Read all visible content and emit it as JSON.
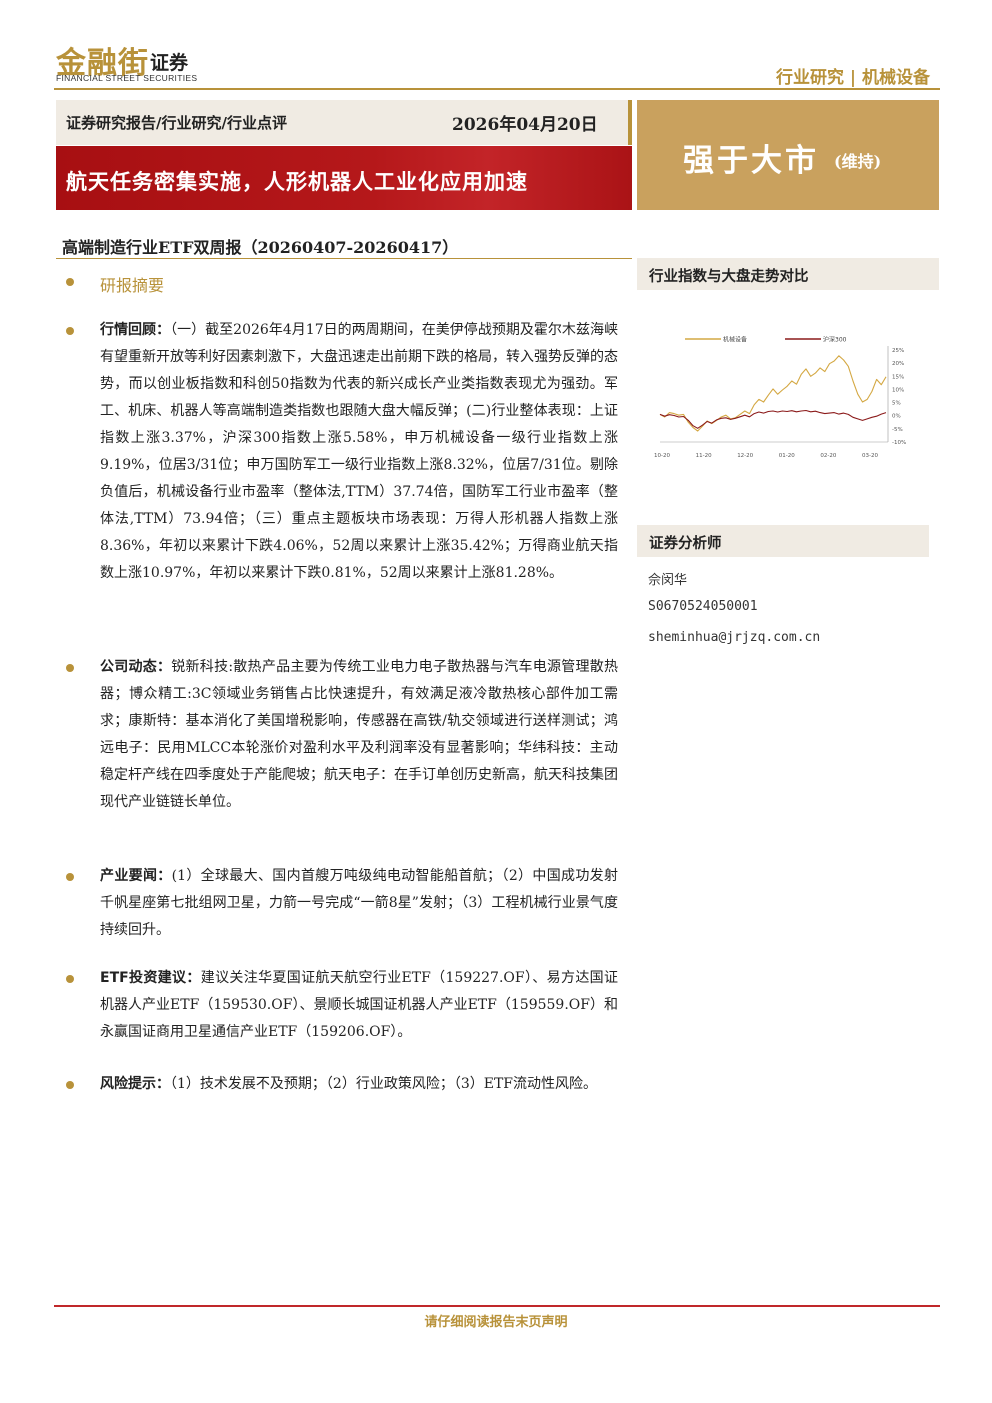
{
  "brand": {
    "name_cn": "金融街",
    "name_suffix": "证券",
    "name_en": "FINANCIAL STREET SECURITIES"
  },
  "top_category": "行业研究 | 机械设备",
  "header": {
    "report_type": "证券研究报告/行业研究/行业点评",
    "date": "2026年04月20日"
  },
  "title": "航天任务密集实施，人形机器人工业化应用加速",
  "rating": {
    "main": "强于大市",
    "sub": "(维持)"
  },
  "subheading": "高端制造行业ETF双周报（20260407-20260417）",
  "abstract_title": "研报摘要",
  "sections": [
    {
      "label": "行情回顾：",
      "text": "（一）截至2026年4月17日的两周期间，在美伊停战预期及霍尔木兹海峡有望重新开放等利好因素刺激下，大盘迅速走出前期下跌的格局，转入强势反弹的态势，而以创业板指数和科创50指数为代表的新兴成长产业类指数表现尤为强劲。军工、机床、机器人等高端制造类指数也跟随大盘大幅反弹；(二)行业整体表现：上证指数上涨3.37%，沪深300指数上涨5.58%，申万机械设备一级行业指数上涨9.19%，位居3/31位；申万国防军工一级行业指数上涨8.32%，位居7/31位。剔除负值后，机械设备行业市盈率（整体法,TTM）37.74倍，国防军工行业市盈率（整体法,TTM）73.94倍；（三）重点主题板块市场表现：万得人形机器人指数上涨8.36%，年初以来累计下跌4.06%，52周以来累计上涨35.42%；万得商业航天指数上涨10.97%，年初以来累计下跌0.81%，52周以来累计上涨81.28%。"
    },
    {
      "label": "公司动态：",
      "text": "锐新科技:散热产品主要为传统工业电力电子散热器与汽车电源管理散热器；博众精工:3C领域业务销售占比快速提升，有效满足液冷散热核心部件加工需求；康斯特：基本消化了美国增税影响，传感器在高铁/轨交领域进行送样测试；鸿远电子：民用MLCC本轮涨价对盈利水平及利润率没有显著影响；华纬科技：主动稳定杆产线在四季度处于产能爬坡；航天电子：在手订单创历史新高，航天科技集团现代产业链链长单位。"
    },
    {
      "label": "产业要闻：",
      "text": "(1）全球最大、国内首艘万吨级纯电动智能船首航；（2）中国成功发射千帆星座第七批组网卫星，力箭一号完成“一箭8星”发射；（3）工程机械行业景气度持续回升。"
    },
    {
      "label": "ETF投资建议：",
      "text": "建议关注华夏国证航天航空行业ETF（159227.OF）、易方达国证机器人产业ETF（159530.OF）、景顺长城国证机器人产业ETF（159559.OF）和永赢国证商用卫星通信产业ETF（159206.OF）。"
    },
    {
      "label": "风险提示：",
      "text": "（1）技术发展不及预期；（2）行业政策风险；（3）ETF流动性风险。"
    }
  ],
  "sidebar": {
    "chart_title": "行业指数与大盘走势对比",
    "analyst_title": "证券分析师",
    "analyst_name": "佘闵华",
    "analyst_id": "S0670524050001",
    "analyst_email": "sheminhua@jrjzq.com.cn"
  },
  "colors": {
    "gold": "#b8923a",
    "red": "#b5181a",
    "series1": "#d4a843",
    "series2": "#8b1a1a"
  },
  "chart_data": {
    "type": "line",
    "x_tick_labels": [
      "10-20",
      "11-20",
      "12-20",
      "01-20",
      "02-20",
      "03-20"
    ],
    "y_tick_labels": [
      "25%",
      "20%",
      "15%",
      "10%",
      "5%",
      "0%",
      "-5%",
      "-10%"
    ],
    "ylim": [
      -10,
      25
    ],
    "series": [
      {
        "name": "机械设备",
        "color": "#d4a843",
        "values": [
          0.5,
          -0.5,
          1.2,
          0.8,
          0.2,
          0.5,
          -2.5,
          -4.5,
          -5.8,
          -4.0,
          -2.0,
          -3.0,
          -1.8,
          -0.5,
          0.2,
          -1.2,
          -0.8,
          0.5,
          1.8,
          0.8,
          4.2,
          6.2,
          5.2,
          7.8,
          10.2,
          8.2,
          9.8,
          11.2,
          13.2,
          12.0,
          15.8,
          17.8,
          15.0,
          16.2,
          18.2,
          16.8,
          19.8,
          20.8,
          22.8,
          21.2,
          18.8,
          13.2,
          8.2,
          5.2,
          6.2,
          9.2,
          13.8,
          11.8,
          14.8
        ]
      },
      {
        "name": "沪深300",
        "color": "#8b1a1a",
        "values": [
          0.5,
          -0.2,
          0.4,
          0.1,
          -0.5,
          -0.3,
          -1.8,
          -3.8,
          -4.8,
          -3.6,
          -2.2,
          -2.8,
          -1.6,
          -1.0,
          -0.8,
          -1.4,
          -1.0,
          -0.4,
          0.2,
          -0.4,
          0.8,
          1.4,
          1.0,
          1.6,
          1.8,
          1.4,
          1.8,
          1.6,
          1.9,
          1.5,
          1.8,
          2.0,
          1.5,
          1.7,
          1.2,
          0.8,
          1.0,
          1.2,
          0.6,
          1.0,
          0.5,
          -0.6,
          -1.2,
          -1.8,
          -1.2,
          -0.6,
          -0.2,
          0.6,
          1.2
        ]
      }
    ]
  },
  "footer": {
    "disclaimer": "请仔细阅读报告末页声明"
  }
}
